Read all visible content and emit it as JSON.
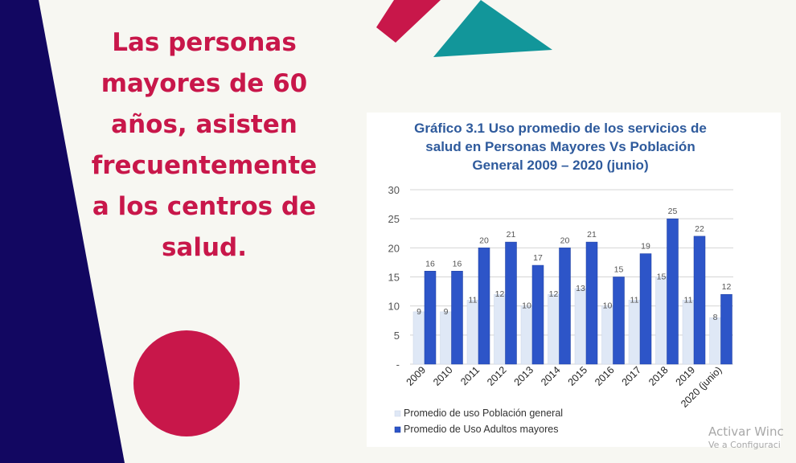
{
  "headline": "Las personas mayores de 60 años, asisten frecuentemente a los centros de salud.",
  "headline_lines": [
    "Las personas",
    "mayores de 60",
    "años, asisten",
    "frecuentemente",
    "a los centros de",
    "salud."
  ],
  "colors": {
    "background": "#f7f7f2",
    "navy": "#120761",
    "crimson": "#c8174a",
    "teal": "#12969a",
    "title_blue": "#2e5a9c",
    "series_general": "#dfe8f6",
    "series_elderly": "#2d55c8"
  },
  "watermark": {
    "line1": "Activar Winc",
    "line2": "Ve a Configuraci"
  },
  "chart_data": {
    "type": "bar",
    "title_lines": [
      "Gráfico 3.1 Uso promedio de los servicios de",
      "salud en Personas Mayores Vs Población",
      "General  2009 – 2020 (junio)"
    ],
    "categories": [
      "2009",
      "2010",
      "2011",
      "2012",
      "2013",
      "2014",
      "2015",
      "2016",
      "2017",
      "2018",
      "2019",
      "2020 (junio)"
    ],
    "series": [
      {
        "name": "Promedio de uso Población general",
        "values": [
          9,
          9,
          11,
          12,
          10,
          12,
          13,
          10,
          11,
          15,
          11,
          8
        ],
        "color": "#dfe8f6"
      },
      {
        "name": "Promedio de Uso Adultos mayores",
        "values": [
          16,
          16,
          20,
          21,
          17,
          20,
          21,
          15,
          19,
          25,
          22,
          12
        ],
        "color": "#2d55c8"
      }
    ],
    "yticks": [
      "30",
      "25",
      "20",
      "15",
      "10",
      "5",
      "-"
    ],
    "ylim": [
      0,
      30
    ],
    "grid": true,
    "legend_position": "bottom-left"
  }
}
